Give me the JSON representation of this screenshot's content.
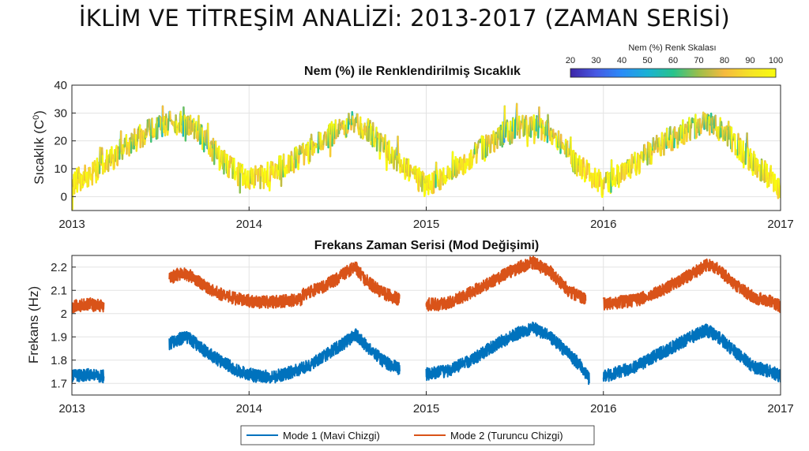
{
  "title": "İKLİM VE TİTREŞİM ANALİZİ: 2013-2017 (ZAMAN SERİSİ)",
  "chart_data": [
    {
      "type": "line",
      "title": "Nem (%) ile Renklendirilmiş Sıcaklık",
      "ylabel": "Sıcaklık (C",
      "ylabel_sup": "0",
      "ylabel_end": ")",
      "xlim": [
        2013,
        2017
      ],
      "ylim": [
        -5,
        40
      ],
      "xticks": [
        "2013",
        "2014",
        "2015",
        "2016",
        "2017"
      ],
      "yticks": [
        "0",
        "10",
        "20",
        "30",
        "40"
      ],
      "grid": true,
      "colorbar": {
        "title": "Nem (%) Renk Skalası",
        "range": [
          20,
          100
        ],
        "ticks": [
          "20",
          "30",
          "40",
          "50",
          "60",
          "70",
          "80",
          "90",
          "100"
        ],
        "colormap": [
          "#3e26a8",
          "#4659e3",
          "#2a8cf8",
          "#1ab1d4",
          "#27c38c",
          "#9cbe4a",
          "#f6ba3e",
          "#f5e326",
          "#f9fb0e"
        ]
      },
      "series": [
        {
          "x": [
            2013.0,
            2013.08,
            2013.17,
            2013.25,
            2013.33,
            2013.42,
            2013.5,
            2013.58,
            2013.67,
            2013.75,
            2013.83,
            2013.92,
            2014.0,
            2014.08,
            2014.17,
            2014.25,
            2014.33,
            2014.42,
            2014.5,
            2014.58,
            2014.67,
            2014.75,
            2014.83,
            2014.92,
            2015.0,
            2015.08,
            2015.17,
            2015.25,
            2015.33,
            2015.42,
            2015.5,
            2015.58,
            2015.67,
            2015.75,
            2015.83,
            2015.92,
            2016.0,
            2016.08,
            2016.17,
            2016.25,
            2016.33,
            2016.42,
            2016.5,
            2016.58,
            2016.67,
            2016.75,
            2016.83,
            2016.92,
            2017.0
          ],
          "y": [
            5,
            7,
            11,
            15,
            19,
            23,
            25,
            27,
            25,
            20,
            14,
            9,
            6,
            7,
            10,
            13,
            16,
            20,
            24,
            26,
            24,
            19,
            13,
            8,
            4,
            6,
            10,
            14,
            18,
            22,
            24,
            26,
            24,
            19,
            13,
            8,
            4,
            7,
            11,
            15,
            19,
            22,
            25,
            26,
            24,
            19,
            13,
            8,
            4
          ]
        }
      ]
    },
    {
      "type": "line",
      "title": "Frekans Zaman Serisi (Mod Değişimi)",
      "ylabel": "Frekans (Hz)",
      "xlim": [
        2013,
        2017
      ],
      "ylim": [
        1.65,
        2.25
      ],
      "xticks": [
        "2013",
        "2014",
        "2015",
        "2016",
        "2017"
      ],
      "yticks": [
        "1.7",
        "1.8",
        "1.9",
        "2",
        "2.1",
        "2.2"
      ],
      "grid": true,
      "legend": "bottom-center",
      "series": [
        {
          "name": "Mode 1 (Mavi Chizgi)",
          "color": "#0072bd",
          "segments": [
            {
              "x": [
                2013.0,
                2013.1,
                2013.18
              ],
              "y": [
                1.73,
                1.74,
                1.73
              ]
            },
            {
              "x": [
                2013.55,
                2013.6,
                2013.65,
                2013.75,
                2013.85,
                2013.95,
                2014.05,
                2014.15,
                2014.25,
                2014.35,
                2014.45,
                2014.55,
                2014.6,
                2014.65,
                2014.75,
                2014.85
              ],
              "y": [
                1.87,
                1.89,
                1.9,
                1.84,
                1.79,
                1.75,
                1.73,
                1.73,
                1.75,
                1.78,
                1.83,
                1.88,
                1.91,
                1.87,
                1.8,
                1.76
              ]
            },
            {
              "x": [
                2015.0,
                2015.1,
                2015.2,
                2015.3,
                2015.4,
                2015.5,
                2015.6,
                2015.7,
                2015.8,
                2015.88,
                2015.92
              ],
              "y": [
                1.74,
                1.75,
                1.78,
                1.82,
                1.87,
                1.91,
                1.94,
                1.9,
                1.83,
                1.77,
                1.72
              ]
            },
            {
              "x": [
                2016.0,
                2016.1,
                2016.2,
                2016.3,
                2016.4,
                2016.5,
                2016.58,
                2016.65,
                2016.75,
                2016.85,
                2016.95,
                2017.0
              ],
              "y": [
                1.73,
                1.75,
                1.78,
                1.82,
                1.86,
                1.9,
                1.93,
                1.9,
                1.83,
                1.77,
                1.75,
                1.73
              ]
            }
          ]
        },
        {
          "name": "Mode 2 (Turuncu Chizgi)",
          "color": "#d95319",
          "segments": [
            {
              "x": [
                2013.0,
                2013.1,
                2013.18
              ],
              "y": [
                2.03,
                2.04,
                2.03
              ]
            },
            {
              "x": [
                2013.55,
                2013.6,
                2013.65,
                2013.75,
                2013.85,
                2013.95,
                2014.05,
                2014.15,
                2014.3
              ],
              "y": [
                2.15,
                2.17,
                2.17,
                2.12,
                2.08,
                2.06,
                2.05,
                2.05,
                2.06
              ]
            },
            {
              "x": [
                2014.3,
                2014.4,
                2014.5,
                2014.55,
                2014.6,
                2014.65,
                2014.75,
                2014.85
              ],
              "y": [
                2.08,
                2.11,
                2.15,
                2.18,
                2.2,
                2.15,
                2.09,
                2.06
              ]
            },
            {
              "x": [
                2015.0,
                2015.1,
                2015.2,
                2015.3,
                2015.4,
                2015.5,
                2015.6,
                2015.7,
                2015.8,
                2015.9
              ],
              "y": [
                2.04,
                2.04,
                2.07,
                2.11,
                2.15,
                2.19,
                2.22,
                2.18,
                2.1,
                2.06
              ]
            },
            {
              "x": [
                2016.0,
                2016.1,
                2016.2,
                2016.3,
                2016.4,
                2016.5,
                2016.58,
                2016.65,
                2016.75,
                2016.85,
                2016.95,
                2017.0
              ],
              "y": [
                2.04,
                2.05,
                2.06,
                2.09,
                2.13,
                2.17,
                2.21,
                2.19,
                2.12,
                2.07,
                2.05,
                2.03
              ]
            }
          ]
        }
      ]
    }
  ]
}
